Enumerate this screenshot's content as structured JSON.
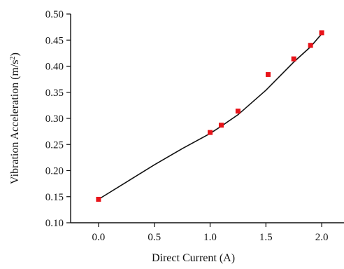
{
  "chart_data": {
    "type": "scatter",
    "title": "",
    "xlabel": "Direct Current (A)",
    "ylabel_main": "Vibration Acceleration (m/s",
    "ylabel_sup": "2",
    "ylabel_tail": ")",
    "xlim": [
      -0.25,
      2.2
    ],
    "ylim": [
      0.1,
      0.5
    ],
    "xticks": [
      0.0,
      0.5,
      1.0,
      1.5,
      2.0
    ],
    "xtick_labels": [
      "0.0",
      "0.5",
      "1.0",
      "1.5",
      "2.0"
    ],
    "yticks": [
      0.1,
      0.15,
      0.2,
      0.25,
      0.3,
      0.35,
      0.4,
      0.45,
      0.5
    ],
    "ytick_labels": [
      "0.10",
      "0.15",
      "0.20",
      "0.25",
      "0.30",
      "0.35",
      "0.40",
      "0.45",
      "0.50"
    ],
    "grid": false,
    "legend": "none",
    "series": [
      {
        "kind": "points",
        "marker": "square",
        "color": "#e8141a",
        "x": [
          0.0,
          1.0,
          1.1,
          1.25,
          1.52,
          1.75,
          1.9,
          2.0
        ],
        "y": [
          0.145,
          0.273,
          0.287,
          0.314,
          0.384,
          0.414,
          0.44,
          0.464
        ]
      },
      {
        "kind": "fit-line",
        "color": "#111111",
        "x": [
          0.0,
          0.25,
          0.5,
          0.75,
          1.0,
          1.1,
          1.25,
          1.5,
          1.75,
          1.9,
          2.0
        ],
        "y": [
          0.145,
          0.178,
          0.211,
          0.242,
          0.271,
          0.285,
          0.307,
          0.354,
          0.408,
          0.437,
          0.462
        ]
      }
    ]
  }
}
